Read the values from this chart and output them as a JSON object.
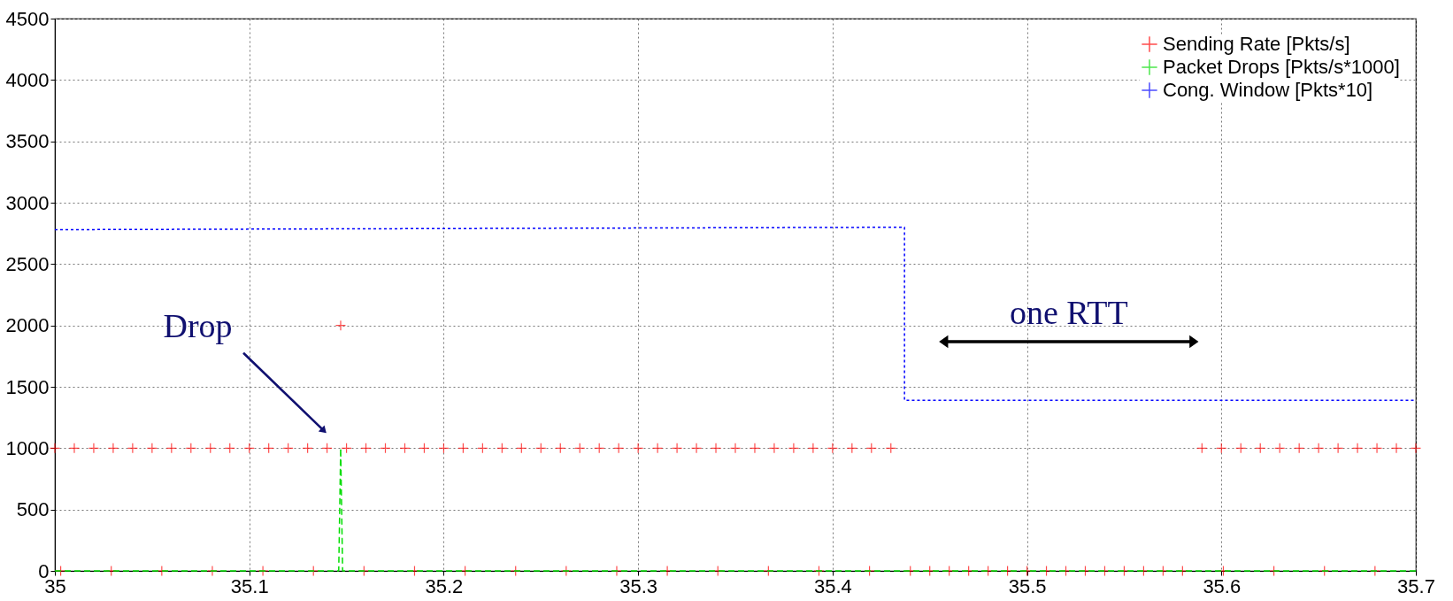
{
  "chart_data": {
    "type": "scatter",
    "xlim": [
      35,
      35.7
    ],
    "xticks": [
      35,
      35.1,
      35.2,
      35.3,
      35.4,
      35.5,
      35.6,
      35.7
    ],
    "ylim": [
      0,
      4500
    ],
    "yticks": [
      0,
      500,
      1000,
      1500,
      2000,
      2500,
      3000,
      3500,
      4000,
      4500
    ],
    "grid": true,
    "legend": "top right",
    "annotations": [
      "Drop",
      "one RTT"
    ],
    "series": [
      {
        "name": "Sending Rate [Pkts/s]",
        "marker": "cross",
        "color": "#ff0000",
        "x": [
          35,
          35.01,
          35.02,
          35.03,
          35.04,
          35.05,
          35.06,
          35.07,
          35.08,
          35.09,
          35.1,
          35.11,
          35.12,
          35.13,
          35.14,
          35.15,
          35.16,
          35.17,
          35.18,
          35.19,
          35.2,
          35.21,
          35.22,
          35.23,
          35.24,
          35.25,
          35.26,
          35.27,
          35.28,
          35.29,
          35.3,
          35.31,
          35.32,
          35.33,
          35.34,
          35.35,
          35.36,
          35.37,
          35.38,
          35.39,
          35.4,
          35.41,
          35.42,
          35.43,
          35.44,
          35.45,
          35.46,
          35.47,
          35.48,
          35.49,
          35.5,
          35.51,
          35.52,
          35.53,
          35.54,
          35.55,
          35.56,
          35.57,
          35.58,
          35.59,
          35.6,
          35.61,
          35.62,
          35.63,
          35.64,
          35.65,
          35.66,
          35.67,
          35.68,
          35.69,
          35.7,
          35.003,
          35.029,
          35.055,
          35.081,
          35.107,
          35.133,
          35.159,
          35.185,
          35.211,
          35.237,
          35.263,
          35.289,
          35.315,
          35.341,
          35.367,
          35.393,
          35.419,
          35.601,
          35.627,
          35.653,
          35.679,
          35.147
        ],
        "values": [
          1000,
          1000,
          1000,
          1000,
          1000,
          1000,
          1000,
          1000,
          1000,
          1000,
          1000,
          1000,
          1000,
          1000,
          1000,
          1000,
          1000,
          1000,
          1000,
          1000,
          1000,
          1000,
          1000,
          1000,
          1000,
          1000,
          1000,
          1000,
          1000,
          1000,
          1000,
          1000,
          1000,
          1000,
          1000,
          1000,
          1000,
          1000,
          1000,
          1000,
          1000,
          1000,
          1000,
          1000,
          0,
          0,
          0,
          0,
          0,
          0,
          0,
          0,
          0,
          0,
          0,
          0,
          0,
          0,
          0,
          1000,
          1000,
          1000,
          1000,
          1000,
          1000,
          1000,
          1000,
          1000,
          1000,
          1000,
          1000,
          0,
          0,
          0,
          0,
          0,
          0,
          0,
          0,
          0,
          0,
          0,
          0,
          0,
          0,
          0,
          0,
          0,
          0,
          0,
          0,
          0,
          2000
        ]
      },
      {
        "name": "Packet Drops [Pkts/s*1000]",
        "type": "line",
        "line_style": "dashed",
        "color": "#00dd00",
        "x": [
          35,
          35.146,
          35.147,
          35.148,
          35.7
        ],
        "values": [
          0,
          0,
          1000,
          0,
          0
        ]
      },
      {
        "name": "Cong. Window [Pkts*10]",
        "type": "line",
        "line_style": "dotted",
        "color": "#0000ff",
        "x": [
          35,
          35.437,
          35.437,
          35.7
        ],
        "values": [
          2780,
          2800,
          1390,
          1390
        ]
      }
    ]
  }
}
